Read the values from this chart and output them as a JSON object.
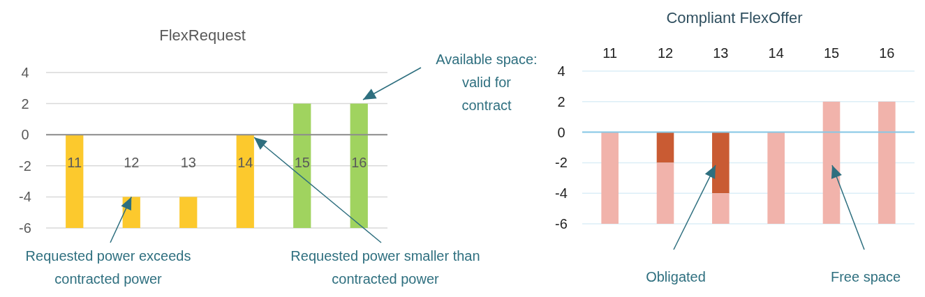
{
  "chart_data": [
    {
      "type": "bar",
      "title": "FlexRequest",
      "categories": [
        "11",
        "12",
        "13",
        "14",
        "15",
        "16"
      ],
      "values": [
        6,
        2,
        2,
        6,
        8,
        8
      ],
      "base": [
        -6,
        -6,
        -6,
        -6,
        -6,
        -6
      ],
      "colors": [
        "#fcc92d",
        "#fcc92d",
        "#fcc92d",
        "#fcc92d",
        "#a0d35f",
        "#a0d35f"
      ],
      "ylim": [
        -6,
        4
      ],
      "yticks": [
        -6,
        -4,
        -2,
        0,
        2,
        4
      ],
      "grid": "y",
      "annotations": [
        {
          "text": "Requested power exceeds contracted power",
          "x": "12",
          "y": -4
        },
        "Requested power smaller than contracted power",
        "Available space: valid for contract"
      ]
    },
    {
      "type": "bar",
      "title": "Compliant FlexOffer",
      "categories": [
        "11",
        "12",
        "13",
        "14",
        "15",
        "16"
      ],
      "stacked": true,
      "series": [
        {
          "color": "#c95b33",
          "values": [
            null,
            -2,
            -4,
            null,
            null,
            null
          ]
        },
        {
          "color": "#f1b3ab",
          "values": [
            -6,
            -4,
            -2,
            -6,
            -6,
            -6
          ]
        },
        {
          "color": "#f1b3ab",
          "values": [
            null,
            null,
            null,
            null,
            2,
            2
          ]
        }
      ],
      "ylim": [
        -6,
        4
      ],
      "yticks": [
        -6,
        -4,
        -2,
        0,
        2,
        4
      ],
      "grid": "y",
      "ref_lines": [
        {
          "axis": "y",
          "value": 0,
          "color": "#87c8e6"
        }
      ],
      "annotations": [
        "Obligated",
        "Free space"
      ]
    }
  ]
}
